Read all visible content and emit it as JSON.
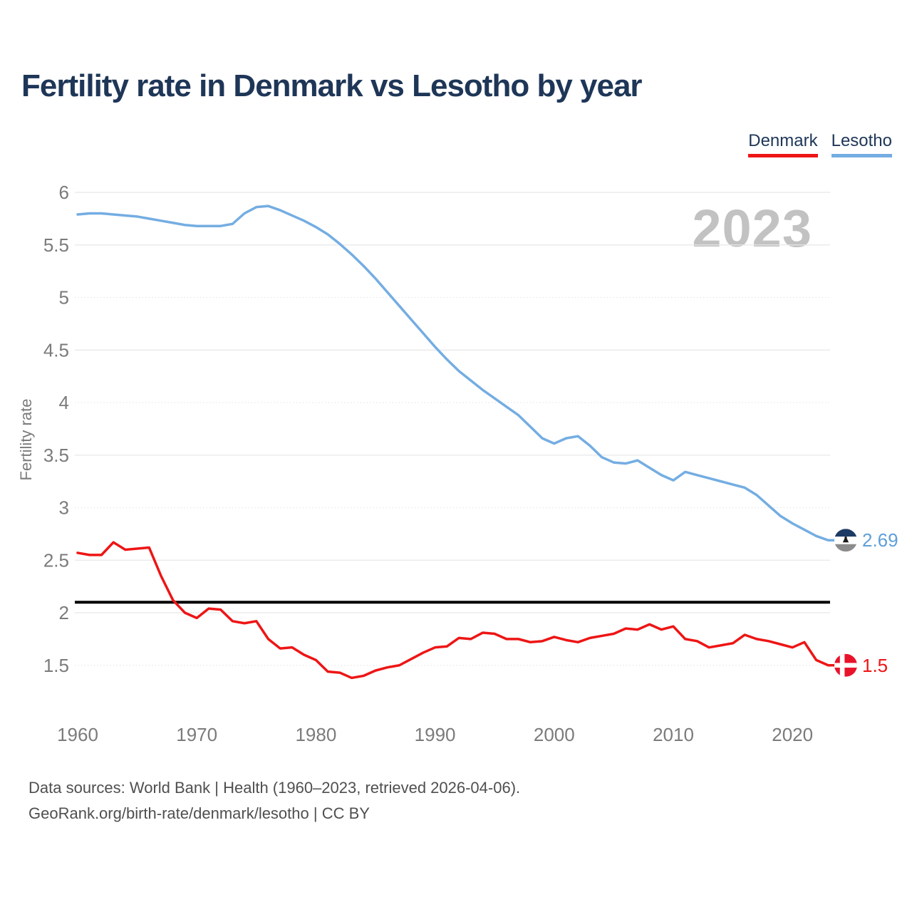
{
  "header": {
    "title": "Fertility rate in Denmark vs Lesotho by year"
  },
  "legend": [
    {
      "label": "Denmark",
      "color": "#ee1515"
    },
    {
      "label": "Lesotho",
      "color": "#74ade2"
    }
  ],
  "watermark": "2023",
  "footer": {
    "line1": "Data sources: World Bank | Health (1960–2023, retrieved 2026-04-06).",
    "line2": "GeoRank.org/birth-rate/denmark/lesotho | CC BY"
  },
  "chart_data": {
    "type": "line",
    "title": "Fertility rate in Denmark vs Lesotho by year",
    "xlabel": "",
    "ylabel": "Fertility rate",
    "legend_position": "top-right",
    "grid": "horizontal",
    "xlim": [
      1960,
      2023
    ],
    "ylim": [
      1.2,
      6.2
    ],
    "x_ticks": [
      1960,
      1970,
      1980,
      1990,
      2000,
      2010,
      2020
    ],
    "y_ticks": [
      6,
      5.5,
      5,
      4.5,
      4,
      3.5,
      3,
      2.5,
      2,
      1.5
    ],
    "dotted_y_ticks": [
      5,
      4,
      3,
      1.5
    ],
    "reference_line": {
      "value": 2.1,
      "color": "#000000"
    },
    "years": [
      1960,
      1961,
      1962,
      1963,
      1964,
      1965,
      1966,
      1967,
      1968,
      1969,
      1970,
      1971,
      1972,
      1973,
      1974,
      1975,
      1976,
      1977,
      1978,
      1979,
      1980,
      1981,
      1982,
      1983,
      1984,
      1985,
      1986,
      1987,
      1988,
      1989,
      1990,
      1991,
      1992,
      1993,
      1994,
      1995,
      1996,
      1997,
      1998,
      1999,
      2000,
      2001,
      2002,
      2003,
      2004,
      2005,
      2006,
      2007,
      2008,
      2009,
      2010,
      2011,
      2012,
      2013,
      2014,
      2015,
      2016,
      2017,
      2018,
      2019,
      2020,
      2021,
      2022,
      2023
    ],
    "series": [
      {
        "name": "Denmark",
        "color": "#ee1515",
        "values": [
          2.57,
          2.55,
          2.55,
          2.67,
          2.6,
          2.61,
          2.62,
          2.35,
          2.12,
          2.0,
          1.95,
          2.04,
          2.03,
          1.92,
          1.9,
          1.92,
          1.75,
          1.66,
          1.67,
          1.6,
          1.55,
          1.44,
          1.43,
          1.38,
          1.4,
          1.45,
          1.48,
          1.5,
          1.56,
          1.62,
          1.67,
          1.68,
          1.76,
          1.75,
          1.81,
          1.8,
          1.75,
          1.75,
          1.72,
          1.73,
          1.77,
          1.74,
          1.72,
          1.76,
          1.78,
          1.8,
          1.85,
          1.84,
          1.89,
          1.84,
          1.87,
          1.75,
          1.73,
          1.67,
          1.69,
          1.71,
          1.79,
          1.75,
          1.73,
          1.7,
          1.67,
          1.72,
          1.55,
          1.5
        ]
      },
      {
        "name": "Lesotho",
        "color": "#74ade2",
        "values": [
          5.79,
          5.8,
          5.8,
          5.79,
          5.78,
          5.77,
          5.75,
          5.73,
          5.71,
          5.69,
          5.68,
          5.68,
          5.68,
          5.7,
          5.8,
          5.86,
          5.87,
          5.83,
          5.78,
          5.73,
          5.67,
          5.6,
          5.51,
          5.41,
          5.3,
          5.18,
          5.05,
          4.92,
          4.79,
          4.66,
          4.53,
          4.41,
          4.3,
          4.21,
          4.12,
          4.04,
          3.96,
          3.88,
          3.77,
          3.66,
          3.61,
          3.66,
          3.68,
          3.59,
          3.48,
          3.43,
          3.42,
          3.45,
          3.38,
          3.31,
          3.26,
          3.34,
          3.31,
          3.28,
          3.25,
          3.22,
          3.19,
          3.12,
          3.02,
          2.92,
          2.85,
          2.79,
          2.73,
          2.69
        ]
      }
    ],
    "end_labels": [
      {
        "series": "Lesotho",
        "text": "2.69",
        "color": "#5f9fd8",
        "flag": "lesotho-flag"
      },
      {
        "series": "Denmark",
        "text": "1.5",
        "color": "#ee1515",
        "flag": "denmark-flag"
      }
    ]
  }
}
